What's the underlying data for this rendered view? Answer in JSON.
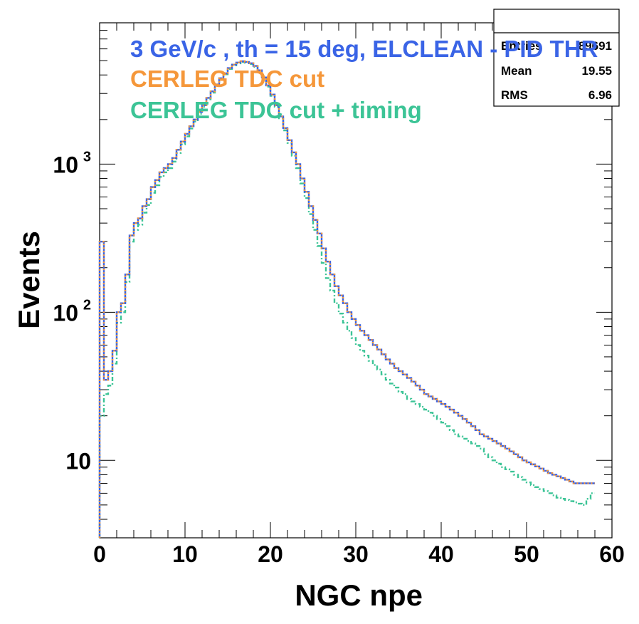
{
  "chart_data": {
    "type": "histogram",
    "xlabel": "NGC npe",
    "ylabel": "Events",
    "xlim": [
      0,
      60
    ],
    "ylim": [
      3,
      9000
    ],
    "yscale": "log",
    "x_ticks": [
      0,
      10,
      20,
      30,
      40,
      50,
      60
    ],
    "x_tick_labels": [
      "0",
      "10",
      "20",
      "30",
      "40",
      "50",
      "60"
    ],
    "y_ticks": [
      10,
      100,
      1000
    ],
    "y_tick_labels": [
      "10",
      "10",
      "10"
    ],
    "y_tick_exponents": [
      "",
      "2",
      "3"
    ],
    "legend_placement": "top-left",
    "legend": [
      {
        "label": "3 GeV/c , th = 15 deg, ELCLEAN - PID THR",
        "color": "#3a64e6"
      },
      {
        "label": "CERLEG TDC cut",
        "color": "#f5973a"
      },
      {
        "label": "CERLEG TDC cut + timing",
        "color": "#3cc496"
      }
    ],
    "stats": {
      "rows": [
        {
          "label": "Entries",
          "value": "89691"
        },
        {
          "label": "Mean",
          "value": "19.55"
        },
        {
          "label": "RMS",
          "value": "6.96"
        }
      ]
    },
    "bin_width": 0.5,
    "x_start": 0,
    "series": [
      {
        "color": "#3a64e6",
        "line": "solid",
        "values": [
          300,
          35,
          40,
          55,
          100,
          115,
          180,
          330,
          400,
          430,
          520,
          580,
          700,
          780,
          880,
          940,
          1000,
          1100,
          1250,
          1420,
          1600,
          1800,
          2000,
          2250,
          2500,
          2800,
          3100,
          3450,
          3800,
          4100,
          4450,
          4700,
          4850,
          4950,
          4900,
          4800,
          4600,
          4300,
          3850,
          3400,
          2950,
          2500,
          2100,
          1750,
          1450,
          1200,
          1000,
          800,
          650,
          520,
          420,
          340,
          270,
          220,
          180,
          150,
          130,
          115,
          100,
          90,
          82,
          75,
          70,
          65,
          60,
          56,
          52,
          48,
          45,
          42,
          40,
          38,
          36,
          34,
          32,
          30,
          28,
          27,
          26,
          25,
          24,
          23,
          22,
          21,
          20,
          19,
          18,
          17,
          16,
          15,
          14.5,
          14,
          13.5,
          13,
          12.5,
          12,
          11.5,
          11,
          10.5,
          10,
          9.7,
          9.4,
          9.1,
          8.8,
          8.5,
          8.2,
          8,
          7.8,
          7.6,
          7.4,
          7.2,
          7,
          7,
          7,
          7,
          7
        ]
      },
      {
        "color": "#f5973a",
        "line": "dotted",
        "values": [
          300,
          35,
          40,
          55,
          100,
          115,
          180,
          330,
          400,
          430,
          520,
          580,
          700,
          780,
          880,
          940,
          1000,
          1100,
          1250,
          1420,
          1600,
          1800,
          2000,
          2250,
          2500,
          2800,
          3100,
          3450,
          3800,
          4100,
          4450,
          4700,
          4850,
          4950,
          4900,
          4800,
          4600,
          4300,
          3850,
          3400,
          2950,
          2500,
          2100,
          1750,
          1450,
          1200,
          1000,
          800,
          650,
          520,
          420,
          340,
          270,
          220,
          180,
          150,
          130,
          115,
          100,
          90,
          82,
          75,
          70,
          65,
          60,
          56,
          52,
          48,
          45,
          42,
          40,
          38,
          36,
          34,
          32,
          30,
          28,
          27,
          26,
          25,
          24,
          23,
          22,
          21,
          20,
          19,
          18,
          17,
          16,
          15,
          14.5,
          14,
          13.5,
          13,
          12.5,
          12,
          11.5,
          11,
          10.5,
          10,
          9.7,
          9.4,
          9.1,
          8.8,
          8.5,
          8.2,
          8,
          7.8,
          7.6,
          7.4,
          7.2,
          7,
          7,
          7,
          7,
          7
        ]
      },
      {
        "color": "#3cc496",
        "line": "dashdot",
        "values": [
          20,
          28,
          32,
          45,
          85,
          100,
          160,
          300,
          360,
          390,
          470,
          530,
          640,
          720,
          820,
          880,
          940,
          1040,
          1190,
          1360,
          1540,
          1740,
          1940,
          2190,
          2440,
          2740,
          3040,
          3390,
          3740,
          4040,
          4390,
          4640,
          4790,
          4890,
          4840,
          4740,
          4540,
          4240,
          3790,
          3340,
          2890,
          2440,
          2040,
          1690,
          1390,
          1140,
          940,
          740,
          590,
          460,
          360,
          280,
          215,
          170,
          140,
          115,
          98,
          85,
          75,
          67,
          60,
          55,
          51,
          47,
          44,
          41,
          38,
          35,
          33,
          31,
          29,
          28,
          26,
          25,
          24,
          23,
          22,
          21,
          20,
          19,
          18,
          17,
          16,
          15,
          14.5,
          14,
          13.5,
          13,
          12.5,
          12,
          11,
          10.5,
          10,
          9.5,
          9,
          8.7,
          8.4,
          8,
          7.7,
          7.4,
          7.1,
          6.8,
          6.6,
          6.4,
          6.2,
          6,
          5.8,
          5.6,
          5.5,
          5.4,
          5.3,
          5.2,
          5.1,
          5,
          5.5,
          6
        ]
      }
    ]
  }
}
